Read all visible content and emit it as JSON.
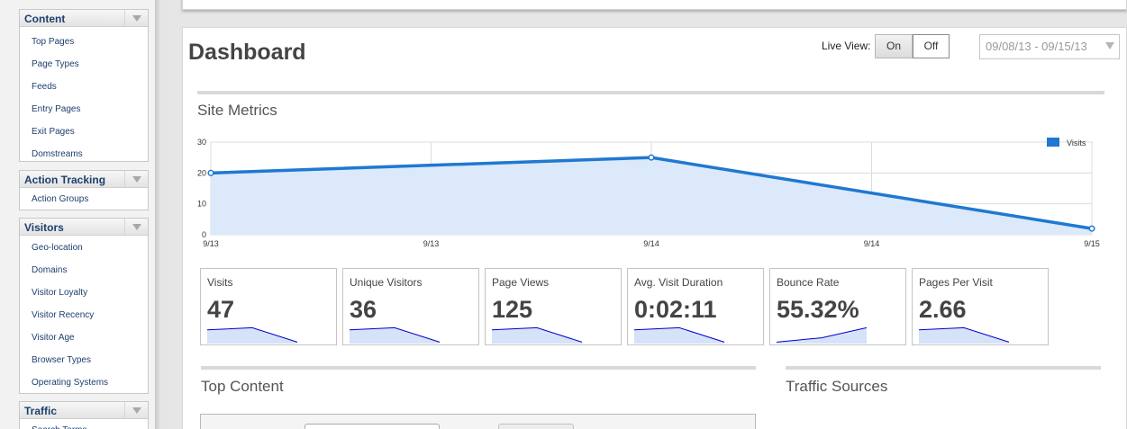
{
  "sidebar": {
    "sections": [
      {
        "title": "Content",
        "items": [
          "Top Pages",
          "Page Types",
          "Feeds",
          "Entry Pages",
          "Exit Pages",
          "Domstreams"
        ]
      },
      {
        "title": "Action Tracking",
        "items": [
          "Action Groups"
        ]
      },
      {
        "title": "Visitors",
        "items": [
          "Geo-location",
          "Domains",
          "Visitor Loyalty",
          "Visitor Recency",
          "Visitor Age",
          "Browser Types",
          "Operating Systems"
        ]
      },
      {
        "title": "Traffic",
        "items": [
          "Search Terms"
        ]
      }
    ]
  },
  "header": {
    "title": "Dashboard",
    "live_view_label": "Live View:",
    "live_on": "On",
    "live_off": "Off",
    "live_view_state": "Off",
    "date_range": "09/08/13 - 09/15/13",
    "caret_icon": "chevron-down-icon"
  },
  "site_metrics": {
    "title": "Site Metrics"
  },
  "chart_data": {
    "type": "area",
    "x": [
      "9/13",
      "9/14",
      "9/15"
    ],
    "x_tick_labels": [
      "9/13",
      "9/13",
      "9/14",
      "9/14",
      "9/15"
    ],
    "series": [
      {
        "name": "Visits",
        "values": [
          20,
          25,
          2
        ],
        "color": "#1f78d1",
        "fill": "#dbe9fa"
      }
    ],
    "ylim": [
      0,
      30
    ],
    "y_ticks": [
      0,
      10,
      20,
      30
    ],
    "grid": true,
    "legend": "top-right"
  },
  "metrics": [
    {
      "label": "Visits",
      "value": "47",
      "spark": [
        19,
        22,
        2
      ]
    },
    {
      "label": "Unique Visitors",
      "value": "36",
      "spark": [
        19,
        22,
        2
      ]
    },
    {
      "label": "Page Views",
      "value": "125",
      "spark": [
        19,
        22,
        2
      ]
    },
    {
      "label": "Avg. Visit Duration",
      "value": "0:02:11",
      "spark": [
        19,
        22,
        2
      ]
    },
    {
      "label": "Bounce Rate",
      "value": "55.32%",
      "spark": [
        2,
        8,
        22
      ]
    },
    {
      "label": "Pages Per Visit",
      "value": "2.66",
      "spark": [
        19,
        22,
        2
      ]
    }
  ],
  "top_content": {
    "title": "Top Content"
  },
  "traffic_sources": {
    "title": "Traffic Sources"
  },
  "colors": {
    "accent": "#1f78d1",
    "sidebar_link": "#1d3f6e",
    "sparkline": "#0000cc",
    "sparkline_fill": "#d6e2f7"
  }
}
